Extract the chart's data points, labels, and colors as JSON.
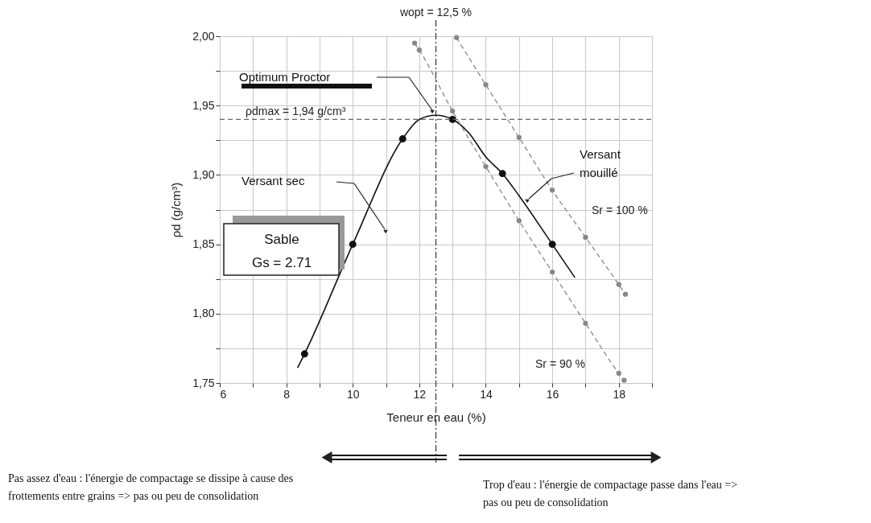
{
  "chart_data": {
    "type": "line",
    "xlabel": "Teneur en eau (%)",
    "ylabel": "ρd (g/cm³)",
    "xlim": [
      6,
      19
    ],
    "ylim": [
      1.75,
      2.0
    ],
    "xticks": [
      6,
      {
        "value": 7,
        "label": null
      },
      8,
      {
        "value": 9,
        "label": null
      },
      10,
      {
        "value": 11,
        "label": null
      },
      12,
      {
        "value": 13,
        "label": null
      },
      14,
      {
        "value": 15,
        "label": null
      },
      16,
      {
        "value": 17,
        "label": null
      },
      18,
      {
        "value": 19,
        "label": null
      }
    ],
    "yticks": [
      {
        "value": 1.75,
        "label": "1,75"
      },
      {
        "value": 1.775,
        "label": null
      },
      {
        "value": 1.8,
        "label": "1,80"
      },
      {
        "value": 1.825,
        "label": null
      },
      {
        "value": 1.85,
        "label": "1,85"
      },
      {
        "value": 1.875,
        "label": null
      },
      {
        "value": 1.9,
        "label": "1,90"
      },
      {
        "value": 1.925,
        "label": null
      },
      {
        "value": 1.95,
        "label": "1,95"
      },
      {
        "value": 1.975,
        "label": null
      },
      {
        "value": 2.0,
        "label": "2,00"
      }
    ],
    "grid": true,
    "series": [
      {
        "color": "#111111",
        "line_style": "solid",
        "marker": "none",
        "x": [
          8.34,
          8.55,
          10,
          11.5,
          12,
          12.5,
          13,
          13.5,
          14,
          14.5,
          15,
          16,
          16.68
        ],
        "values": [
          1.761,
          1.771,
          1.85,
          1.926,
          1.94,
          1.943,
          1.94,
          1.93,
          1.913,
          1.901,
          1.885,
          1.85,
          1.826
        ]
      },
      {
        "type": "scatter",
        "color": "#111111",
        "marker": "circle",
        "x": [
          8.55,
          10,
          11.5,
          13,
          14.5,
          16
        ],
        "values": [
          1.771,
          1.85,
          1.926,
          1.94,
          1.901,
          1.85
        ]
      },
      {
        "name": "Sr = 100 %",
        "color": "#888888",
        "line_style": "dashed",
        "marker": "circle",
        "x": [
          13.12,
          14,
          15,
          16,
          17,
          18,
          18.2
        ],
        "values": [
          1.999,
          1.965,
          1.927,
          1.889,
          1.855,
          1.821,
          1.814
        ]
      },
      {
        "name": "Sr = 90 %",
        "color": "#888888",
        "line_style": "dashed",
        "marker": "circle",
        "x": [
          11.86,
          12,
          13,
          14,
          15,
          16,
          17,
          18,
          18.16
        ],
        "values": [
          1.995,
          1.99,
          1.946,
          1.906,
          1.867,
          1.83,
          1.793,
          1.757,
          1.752
        ]
      }
    ],
    "ref_lines": [
      {
        "axis": "x",
        "value": 12.5,
        "label": "wopt = 12,5 %",
        "color": "#333333",
        "line_style": "dashdot"
      },
      {
        "axis": "y",
        "value": 1.94,
        "label": "ρdmax = 1,94 g/cm³",
        "color": "#666666",
        "line_style": "dashed"
      }
    ],
    "annotations": [
      "Optimum Proctor",
      "Versant sec",
      "Versant mouillé",
      "Sable",
      "Gs = 2.71",
      "Pas assez d'eau : l'énergie de compactage se dissipe à cause des frottements entre grains => pas ou peu de consolidation",
      "Trop d'eau : l'énergie de compactage passe dans l'eau => pas ou peu de consolidation"
    ]
  }
}
